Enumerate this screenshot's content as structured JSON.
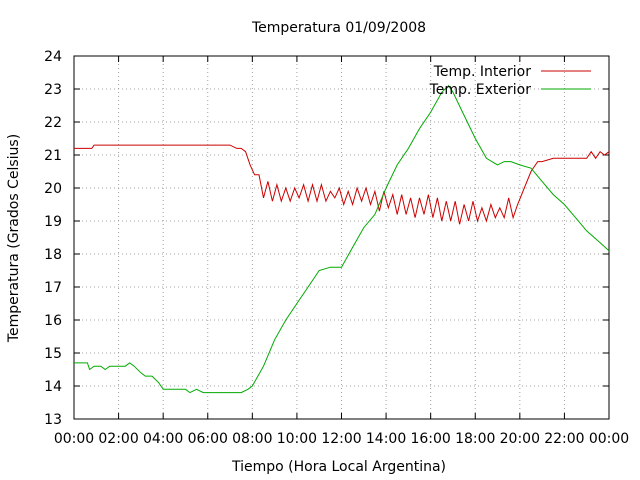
{
  "chart_data": {
    "type": "line",
    "title": "Temperatura 01/09/2008",
    "xlabel": "Tiempo (Hora Local Argentina)",
    "ylabel": "Temperatura (Grados Celsius)",
    "xlim": [
      0,
      24
    ],
    "ylim": [
      13,
      24
    ],
    "x_unit": "hours",
    "xticks": [
      "00:00",
      "02:00",
      "04:00",
      "06:00",
      "08:00",
      "10:00",
      "12:00",
      "14:00",
      "16:00",
      "18:00",
      "20:00",
      "22:00",
      "00:00"
    ],
    "yticks": [
      "13",
      "14",
      "15",
      "16",
      "17",
      "18",
      "19",
      "20",
      "21",
      "22",
      "23",
      "24"
    ],
    "grid": true,
    "legend_position": "top-right",
    "series": [
      {
        "name": "Temp. Interior",
        "color": "#cc0000",
        "x": [
          0,
          0.8,
          0.9,
          1.0,
          1.2,
          3.0,
          6.0,
          7.0,
          7.3,
          7.5,
          7.7,
          7.9,
          8.1,
          8.3,
          8.5,
          8.7,
          8.9,
          9.1,
          9.3,
          9.5,
          9.7,
          9.9,
          10.1,
          10.3,
          10.5,
          10.7,
          10.9,
          11.1,
          11.3,
          11.5,
          11.7,
          11.9,
          12.1,
          12.3,
          12.5,
          12.7,
          12.9,
          13.1,
          13.3,
          13.5,
          13.7,
          13.9,
          14.1,
          14.3,
          14.5,
          14.7,
          14.9,
          15.1,
          15.3,
          15.5,
          15.7,
          15.9,
          16.1,
          16.3,
          16.5,
          16.7,
          16.9,
          17.1,
          17.3,
          17.5,
          17.7,
          17.9,
          18.1,
          18.3,
          18.5,
          18.7,
          18.9,
          19.1,
          19.3,
          19.5,
          19.7,
          19.9,
          20.2,
          20.5,
          20.8,
          21.0,
          21.5,
          22.0,
          22.5,
          23.0,
          23.2,
          23.4,
          23.6,
          23.8,
          24.0
        ],
        "values": [
          21.2,
          21.2,
          21.3,
          21.3,
          21.3,
          21.3,
          21.3,
          21.3,
          21.2,
          21.2,
          21.1,
          20.7,
          20.4,
          20.4,
          19.7,
          20.2,
          19.6,
          20.1,
          19.6,
          20.0,
          19.6,
          20.0,
          19.7,
          20.1,
          19.6,
          20.1,
          19.6,
          20.1,
          19.6,
          19.9,
          19.7,
          20.0,
          19.5,
          19.9,
          19.5,
          20.0,
          19.6,
          20.0,
          19.5,
          19.9,
          19.3,
          19.9,
          19.4,
          19.8,
          19.2,
          19.8,
          19.2,
          19.7,
          19.1,
          19.7,
          19.2,
          19.8,
          19.1,
          19.7,
          19.0,
          19.6,
          19.0,
          19.6,
          18.9,
          19.5,
          19.0,
          19.6,
          19.0,
          19.4,
          19.0,
          19.5,
          19.1,
          19.4,
          19.1,
          19.7,
          19.1,
          19.5,
          20.0,
          20.5,
          20.8,
          20.8,
          20.9,
          20.9,
          20.9,
          20.9,
          21.1,
          20.9,
          21.1,
          21.0,
          21.1
        ]
      },
      {
        "name": "Temp. Exterior",
        "color": "#00aa00",
        "x": [
          0,
          0.6,
          0.7,
          0.9,
          1.2,
          1.4,
          1.6,
          2.0,
          2.3,
          2.5,
          2.7,
          3.0,
          3.2,
          3.5,
          3.8,
          4.0,
          4.5,
          5.0,
          5.2,
          5.5,
          5.8,
          6.0,
          7.0,
          7.5,
          7.8,
          8.0,
          8.5,
          9.0,
          9.5,
          10.0,
          10.5,
          11.0,
          11.5,
          12.0,
          12.5,
          13.0,
          13.5,
          14.0,
          14.5,
          15.0,
          15.5,
          16.0,
          16.5,
          16.8,
          17.0,
          17.5,
          18.0,
          18.5,
          19.0,
          19.3,
          19.6,
          20.0,
          20.5,
          21.0,
          21.5,
          22.0,
          22.5,
          23.0,
          23.5,
          24.0
        ],
        "values": [
          14.7,
          14.7,
          14.5,
          14.6,
          14.6,
          14.5,
          14.6,
          14.6,
          14.6,
          14.7,
          14.6,
          14.4,
          14.3,
          14.3,
          14.1,
          13.9,
          13.9,
          13.9,
          13.8,
          13.9,
          13.8,
          13.8,
          13.8,
          13.8,
          13.9,
          14.0,
          14.6,
          15.4,
          16.0,
          16.5,
          17.0,
          17.5,
          17.6,
          17.6,
          18.2,
          18.8,
          19.2,
          20.0,
          20.7,
          21.2,
          21.8,
          22.3,
          22.9,
          23.1,
          22.9,
          22.2,
          21.5,
          20.9,
          20.7,
          20.8,
          20.8,
          20.7,
          20.6,
          20.2,
          19.8,
          19.5,
          19.1,
          18.7,
          18.4,
          18.1
        ]
      }
    ]
  }
}
